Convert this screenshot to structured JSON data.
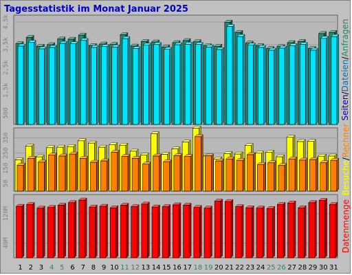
{
  "chart_data": [
    {
      "type": "bar",
      "title": "Tagesstatistik im Monat Januar 2025",
      "categories": [
        "1",
        "2",
        "3",
        "4",
        "5",
        "6",
        "7",
        "8",
        "9",
        "10",
        "11",
        "12",
        "13",
        "14",
        "15",
        "16",
        "17",
        "18",
        "19",
        "20",
        "21",
        "22",
        "23",
        "24",
        "25",
        "26",
        "27",
        "28",
        "29",
        "30",
        "31"
      ],
      "weekend_days": [
        "4",
        "5",
        "11",
        "12",
        "18",
        "19",
        "25",
        "26"
      ],
      "ylim": [
        0,
        4800
      ],
      "ytick_labels": [
        "500",
        "1,5k",
        "2,5k",
        "3,5k",
        "4,5k"
      ],
      "ytick_values": [
        500,
        1500,
        2500,
        3500,
        4500
      ],
      "side_labels": [
        "Seiten",
        "/",
        "Dateien",
        "/",
        "Anfragen"
      ],
      "series": [
        {
          "name": "Anfragen",
          "values": [
            3550,
            3820,
            3430,
            3500,
            3750,
            3740,
            3920,
            3460,
            3530,
            3510,
            3940,
            3440,
            3640,
            3620,
            3400,
            3590,
            3680,
            3630,
            3450,
            3430,
            4490,
            4040,
            3570,
            3460,
            3330,
            3420,
            3590,
            3640,
            3330,
            3990,
            4040
          ]
        },
        {
          "name": "Dateien",
          "values": [
            3440,
            3600,
            3320,
            3380,
            3560,
            3540,
            3690,
            3380,
            3420,
            3400,
            3770,
            3330,
            3480,
            3510,
            3300,
            3500,
            3520,
            3510,
            3400,
            3290,
            4300,
            3860,
            3480,
            3380,
            3260,
            3350,
            3460,
            3510,
            3260,
            3780,
            3860
          ]
        },
        {
          "name": "Seiten",
          "values": [
            0,
            0,
            0,
            0,
            0,
            0,
            0,
            0,
            0,
            0,
            0,
            0,
            0,
            0,
            0,
            0,
            0,
            0,
            0,
            0,
            0,
            0,
            0,
            0,
            0,
            0,
            0,
            0,
            0,
            0,
            0
          ]
        }
      ],
      "colors": {
        "Anfragen": "#1f8a6e",
        "Dateien": "#00e5ff",
        "Seiten": "#0000cc"
      }
    },
    {
      "type": "bar",
      "categories": [
        "1",
        "2",
        "3",
        "4",
        "5",
        "6",
        "7",
        "8",
        "9",
        "10",
        "11",
        "12",
        "13",
        "14",
        "15",
        "16",
        "17",
        "18",
        "19",
        "20",
        "21",
        "22",
        "23",
        "24",
        "25",
        "26",
        "27",
        "28",
        "29",
        "30",
        "31"
      ],
      "ylim": [
        0,
        415
      ],
      "ytick_labels": [
        "50",
        "150",
        "250",
        "350"
      ],
      "ytick_values": [
        50,
        150,
        250,
        350
      ],
      "side_labels": [
        "Besuche",
        "/",
        "Rechner"
      ],
      "series": [
        {
          "name": "Besuche",
          "values": [
            205,
            295,
            225,
            285,
            288,
            292,
            330,
            315,
            288,
            305,
            301,
            262,
            236,
            376,
            241,
            277,
            322,
            413,
            230,
            210,
            246,
            243,
            299,
            249,
            255,
            225,
            353,
            325,
            326,
            229,
            230
          ]
        },
        {
          "name": "Rechner",
          "values": [
            170,
            215,
            190,
            236,
            230,
            243,
            215,
            189,
            198,
            255,
            228,
            215,
            177,
            230,
            193,
            232,
            227,
            357,
            232,
            198,
            211,
            202,
            239,
            175,
            186,
            168,
            211,
            203,
            207,
            186,
            202
          ]
        }
      ],
      "colors": {
        "Besuche": "#ffff00",
        "Rechner": "#ff8000"
      }
    },
    {
      "type": "bar",
      "categories": [
        "1",
        "2",
        "3",
        "4",
        "5",
        "6",
        "7",
        "8",
        "9",
        "10",
        "11",
        "12",
        "13",
        "14",
        "15",
        "16",
        "17",
        "18",
        "19",
        "20",
        "21",
        "22",
        "23",
        "24",
        "25",
        "26",
        "27",
        "28",
        "29",
        "30",
        "31"
      ],
      "ylim": [
        0,
        172
      ],
      "ytick_labels": [
        "40M",
        "120M"
      ],
      "ytick_values": [
        40,
        120
      ],
      "ytick_unit": "M",
      "side_labels": [
        "Datenmenge"
      ],
      "series": [
        {
          "name": "Datenmenge",
          "values": [
            140,
            145,
            135,
            137,
            143,
            150,
            157,
            138,
            140,
            136,
            143,
            139,
            146,
            138,
            139,
            144,
            143,
            137,
            135,
            154,
            153,
            139,
            136,
            135,
            134,
            145,
            149,
            136,
            150,
            156,
            145
          ]
        }
      ],
      "colors": {
        "Datenmenge": "#ff0000"
      }
    }
  ]
}
